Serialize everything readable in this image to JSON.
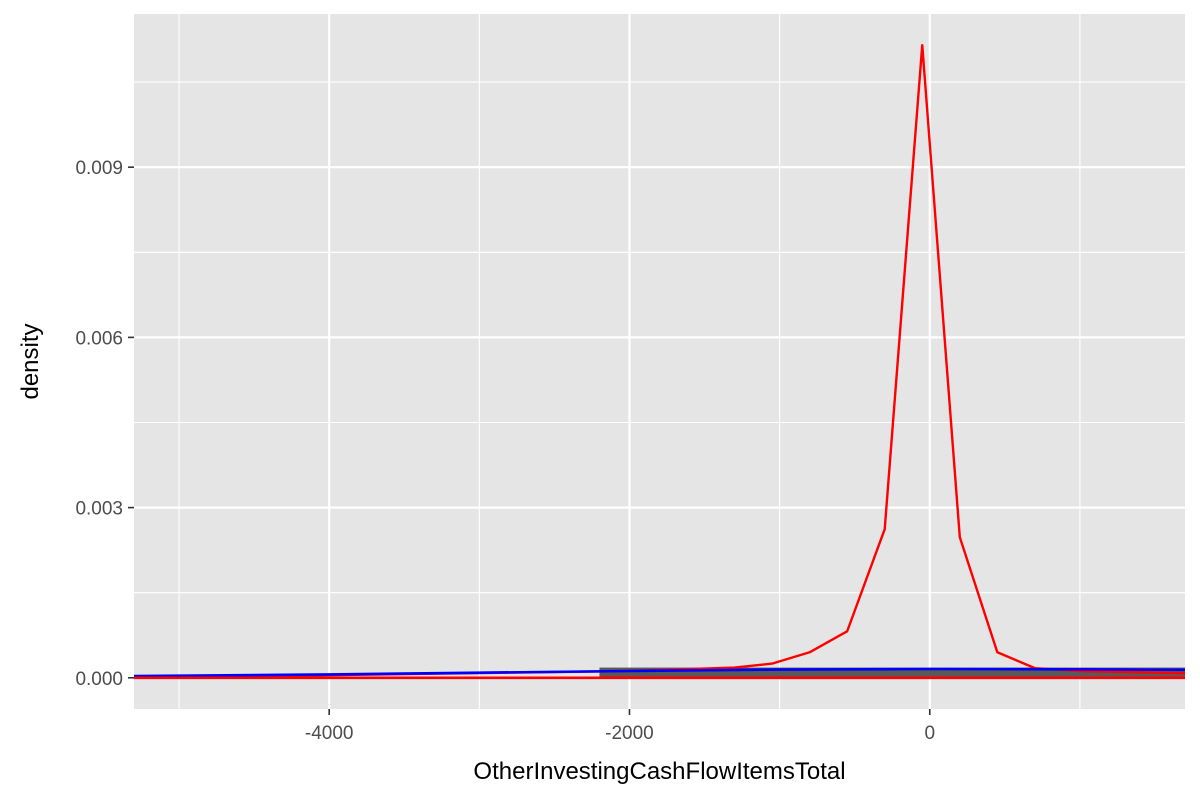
{
  "chart_data": {
    "type": "line",
    "title": "",
    "xlabel": "OtherInvestingCashFlowItemsTotal",
    "ylabel": "density",
    "xlim": [
      -5300,
      1700
    ],
    "ylim": [
      -0.00055,
      0.0117
    ],
    "x_ticks": [
      -4000,
      -2000,
      0
    ],
    "x_tick_labels": [
      "-4000",
      "-2000",
      "0"
    ],
    "x_minor_ticks": [
      -5000,
      -3000,
      -1000,
      1000
    ],
    "y_ticks": [
      0,
      0.003,
      0.006,
      0.009
    ],
    "y_tick_labels": [
      "0.000",
      "0.003",
      "0.006",
      "0.009"
    ],
    "y_minor_ticks": [
      0.0015,
      0.0045,
      0.0075,
      0.0105
    ],
    "grid": true,
    "legend": "none",
    "colors": {
      "panel": "#e5e5e5",
      "grid": "#ffffff",
      "bar_fill": "#595959",
      "density_red": "#ff0000",
      "density_blue": "#0000ff",
      "baseline_red": "#ff0000"
    },
    "series": [
      {
        "type": "histogram",
        "color": "#595959",
        "x": [
          -2200,
          1700
        ],
        "values": [
          0.00018
        ]
      },
      {
        "type": "line",
        "color": "#ff0000",
        "x": [
          -5300,
          -2000,
          -1300,
          -1050,
          -800,
          -550,
          -300,
          -50,
          200,
          450,
          700,
          1000,
          1700
        ],
        "values": [
          0.0,
          0.00012,
          0.00018,
          0.00025,
          0.00045,
          0.00082,
          0.00262,
          0.01115,
          0.00248,
          0.00045,
          0.00017,
          0.00012,
          8e-05
        ]
      },
      {
        "type": "line",
        "color": "#0000ff",
        "x": [
          -5300,
          -4000,
          -3000,
          -2000,
          -1000,
          0,
          1000,
          1700
        ],
        "values": [
          3e-05,
          6e-05,
          9e-05,
          0.00012,
          0.000145,
          0.000155,
          0.00015,
          0.00014
        ]
      },
      {
        "type": "line",
        "color": "#ff0000",
        "x": [
          -5300,
          -2200,
          1700
        ],
        "values": [
          0.0,
          0.0,
          0.0
        ]
      }
    ]
  }
}
